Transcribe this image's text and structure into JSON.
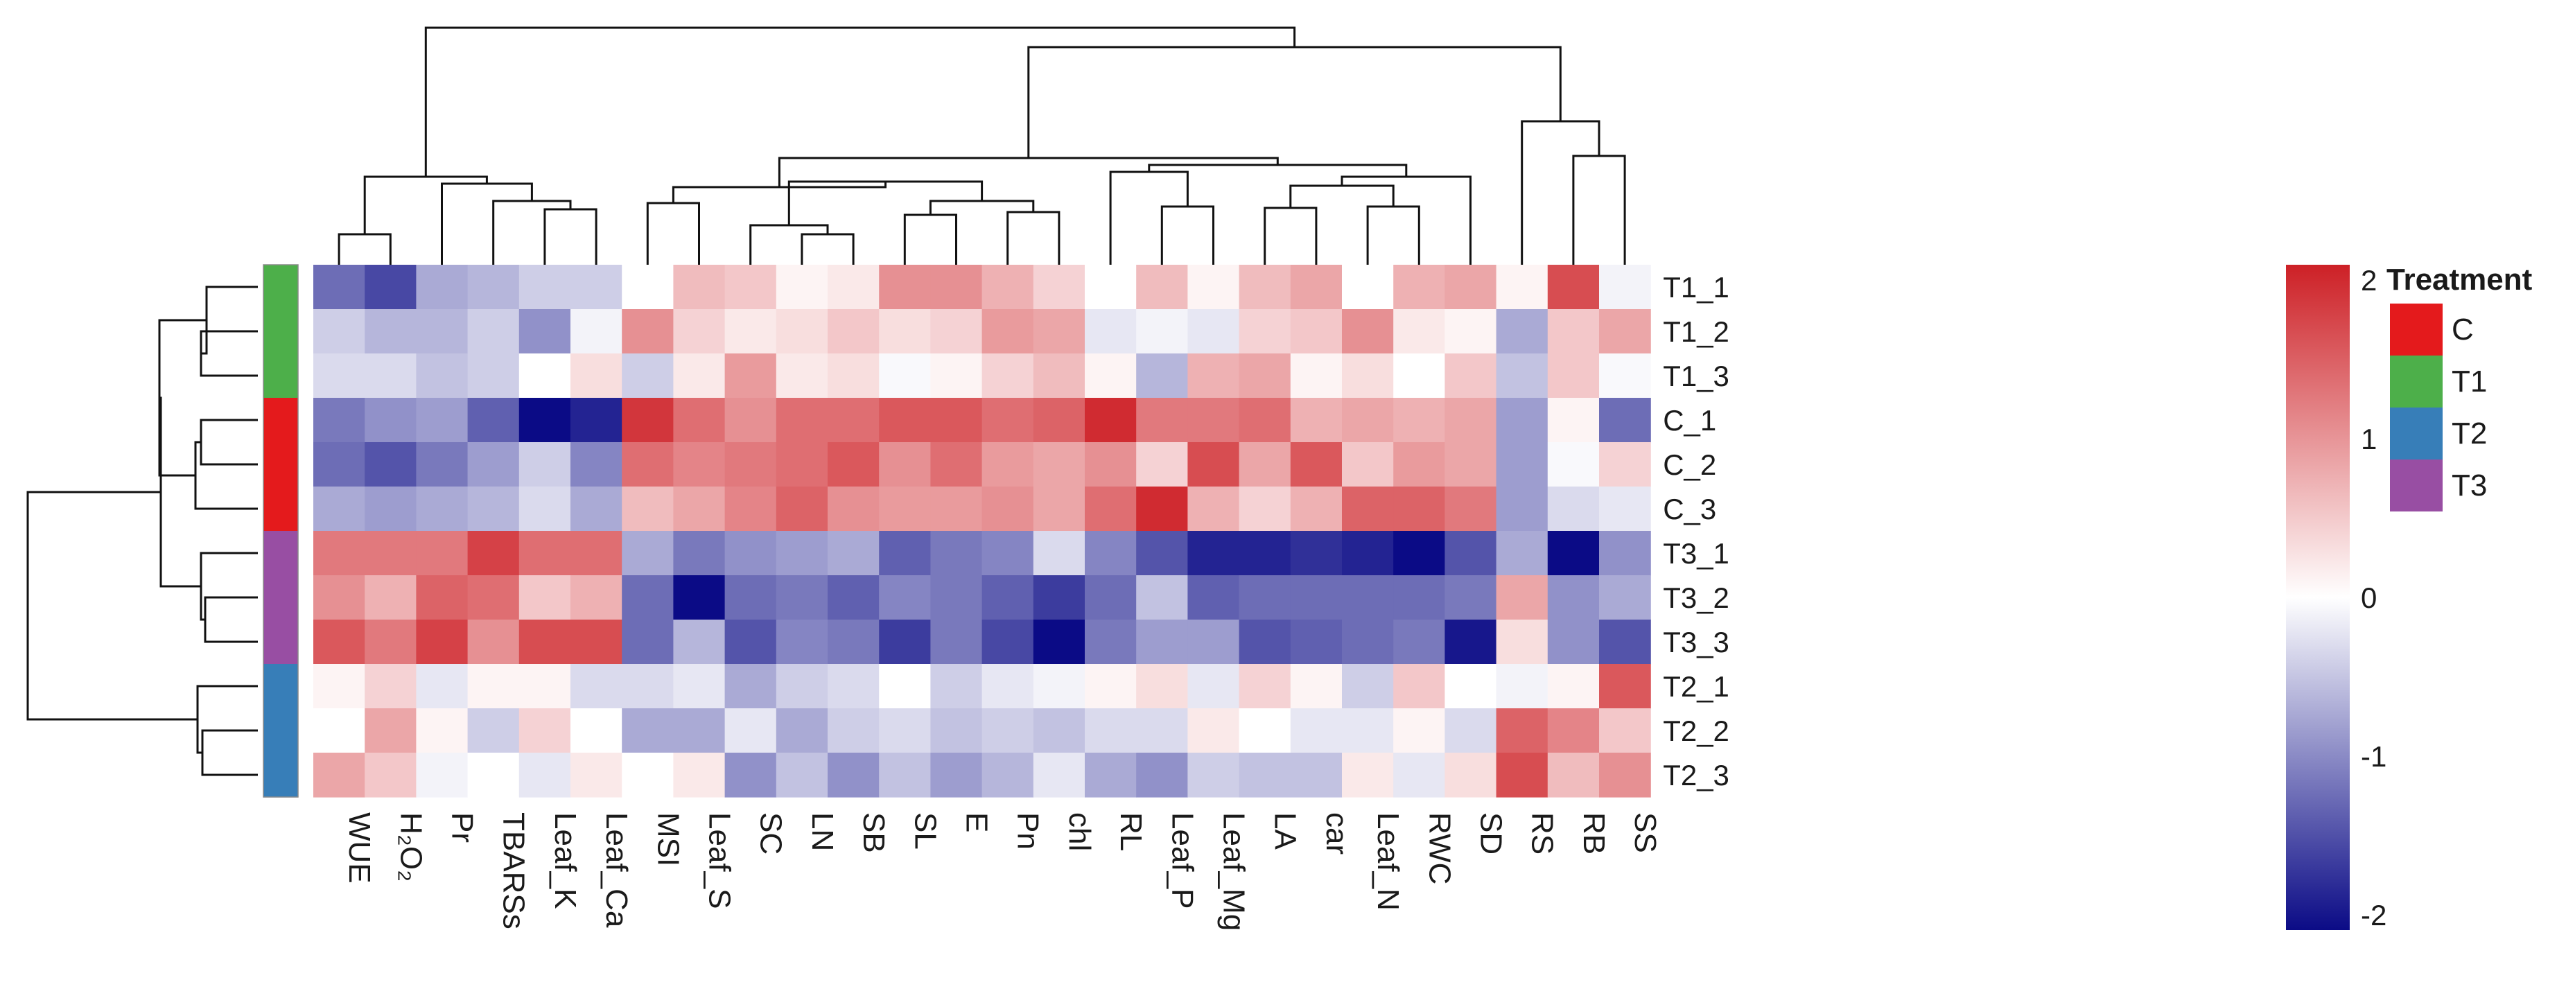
{
  "chart_data": {
    "type": "heatmap",
    "columns": [
      "WUE",
      "H2O2",
      "Pr",
      "TBARSs",
      "Leaf_K",
      "Leaf_Ca",
      "MSI",
      "Leaf_S",
      "SC",
      "LN",
      "SB",
      "SL",
      "E",
      "Pn",
      "chl",
      "RL",
      "Leaf_P",
      "Leaf_Mg",
      "LA",
      "car",
      "Leaf_N",
      "RWC",
      "SD",
      "RS",
      "RB",
      "SS"
    ],
    "rows": [
      "T1_1",
      "T1_2",
      "T1_3",
      "C_1",
      "C_2",
      "C_3",
      "T3_1",
      "T3_2",
      "T3_3",
      "T2_1",
      "T2_2",
      "T2_3"
    ],
    "row_treatment": [
      "T1",
      "T1",
      "T1",
      "C",
      "C",
      "C",
      "T3",
      "T3",
      "T3",
      "T2",
      "T2",
      "T2"
    ],
    "values": [
      [
        -1.2,
        -1.5,
        -0.7,
        -0.6,
        -0.4,
        -0.4,
        0.0,
        0.6,
        0.5,
        0.1,
        0.2,
        1.0,
        1.0,
        0.7,
        0.4,
        0.0,
        0.6,
        0.1,
        0.6,
        0.8,
        0.0,
        0.7,
        0.8,
        0.1,
        1.6,
        -0.1
      ],
      [
        -0.4,
        -0.6,
        -0.6,
        -0.4,
        -0.9,
        -0.1,
        1.0,
        0.4,
        0.2,
        0.3,
        0.5,
        0.3,
        0.4,
        0.9,
        0.8,
        -0.2,
        -0.1,
        -0.2,
        0.4,
        0.5,
        1.0,
        0.2,
        0.1,
        -0.7,
        0.5,
        0.8
      ],
      [
        -0.3,
        -0.3,
        -0.5,
        -0.4,
        0.0,
        0.3,
        -0.4,
        0.2,
        0.9,
        0.2,
        0.3,
        -0.05,
        0.1,
        0.4,
        0.6,
        0.1,
        -0.6,
        0.7,
        0.8,
        0.1,
        0.3,
        0.0,
        0.5,
        -0.5,
        0.5,
        -0.05
      ],
      [
        -1.1,
        -0.9,
        -0.8,
        -1.3,
        -2.0,
        -1.8,
        1.8,
        1.3,
        1.0,
        1.3,
        1.3,
        1.5,
        1.5,
        1.3,
        1.4,
        1.9,
        1.2,
        1.2,
        1.3,
        0.7,
        0.8,
        0.7,
        0.8,
        -0.8,
        0.1,
        -1.2
      ],
      [
        -1.2,
        -1.4,
        -1.1,
        -0.8,
        -0.4,
        -1.0,
        1.3,
        1.1,
        1.2,
        1.3,
        1.5,
        1.0,
        1.3,
        0.9,
        0.8,
        1.0,
        0.4,
        1.6,
        0.8,
        1.5,
        0.5,
        0.9,
        0.8,
        -0.8,
        -0.05,
        0.4
      ],
      [
        -0.7,
        -0.8,
        -0.7,
        -0.6,
        -0.3,
        -0.7,
        0.6,
        0.8,
        1.1,
        1.4,
        1.0,
        0.9,
        0.9,
        1.0,
        0.8,
        1.3,
        1.9,
        0.7,
        0.4,
        0.7,
        1.4,
        1.4,
        1.2,
        -0.8,
        -0.3,
        -0.2
      ],
      [
        1.2,
        1.2,
        1.2,
        1.7,
        1.3,
        1.3,
        -0.7,
        -1.1,
        -0.9,
        -0.8,
        -0.7,
        -1.3,
        -1.1,
        -1.0,
        -0.3,
        -1.0,
        -1.4,
        -1.8,
        -1.8,
        -1.7,
        -1.8,
        -2.0,
        -1.4,
        -0.7,
        -2.0,
        -0.9
      ],
      [
        1.0,
        0.7,
        1.4,
        1.3,
        0.5,
        0.7,
        -1.2,
        -2.0,
        -1.2,
        -1.1,
        -1.3,
        -1.0,
        -1.1,
        -1.3,
        -1.6,
        -1.2,
        -0.5,
        -1.3,
        -1.2,
        -1.2,
        -1.2,
        -1.2,
        -1.1,
        0.8,
        -0.9,
        -0.7
      ],
      [
        1.5,
        1.2,
        1.7,
        1.0,
        1.6,
        1.6,
        -1.2,
        -0.6,
        -1.4,
        -1.0,
        -1.1,
        -1.6,
        -1.1,
        -1.5,
        -2.0,
        -1.1,
        -0.8,
        -0.8,
        -1.4,
        -1.3,
        -1.2,
        -1.1,
        -1.9,
        0.3,
        -0.9,
        -1.4
      ],
      [
        0.1,
        0.4,
        -0.2,
        0.1,
        0.1,
        -0.3,
        -0.3,
        -0.2,
        -0.7,
        -0.4,
        -0.3,
        0.0,
        -0.4,
        -0.2,
        -0.1,
        0.1,
        0.3,
        -0.2,
        0.4,
        0.1,
        -0.4,
        0.5,
        0.0,
        -0.1,
        0.1,
        1.5
      ],
      [
        0.0,
        0.8,
        0.1,
        -0.4,
        0.4,
        0.0,
        -0.7,
        -0.7,
        -0.2,
        -0.7,
        -0.4,
        -0.3,
        -0.5,
        -0.4,
        -0.5,
        -0.3,
        -0.3,
        0.2,
        0.0,
        -0.2,
        -0.2,
        0.1,
        -0.3,
        1.4,
        1.1,
        0.5
      ],
      [
        0.8,
        0.5,
        -0.1,
        0.0,
        -0.2,
        0.2,
        0.0,
        0.2,
        -0.9,
        -0.5,
        -0.9,
        -0.5,
        -0.8,
        -0.6,
        -0.2,
        -0.7,
        -0.9,
        -0.4,
        -0.5,
        -0.5,
        0.2,
        -0.2,
        0.3,
        1.6,
        0.6,
        1.0
      ]
    ],
    "color_scale": {
      "min": -2,
      "mid": 0,
      "max": 2,
      "low": "#0b0b86",
      "mid_color": "#ffffff",
      "high": "#cd2026"
    },
    "colorbar_ticks": [
      "2",
      "1",
      "0",
      "-1",
      "-2"
    ],
    "legend": {
      "title": "Treatment",
      "entries": [
        {
          "label": "C",
          "color": "#e41a1c"
        },
        {
          "label": "T1",
          "color": "#4daf4a"
        },
        {
          "label": "T2",
          "color": "#377eb8"
        },
        {
          "label": "T3",
          "color": "#984ea3"
        }
      ]
    }
  }
}
